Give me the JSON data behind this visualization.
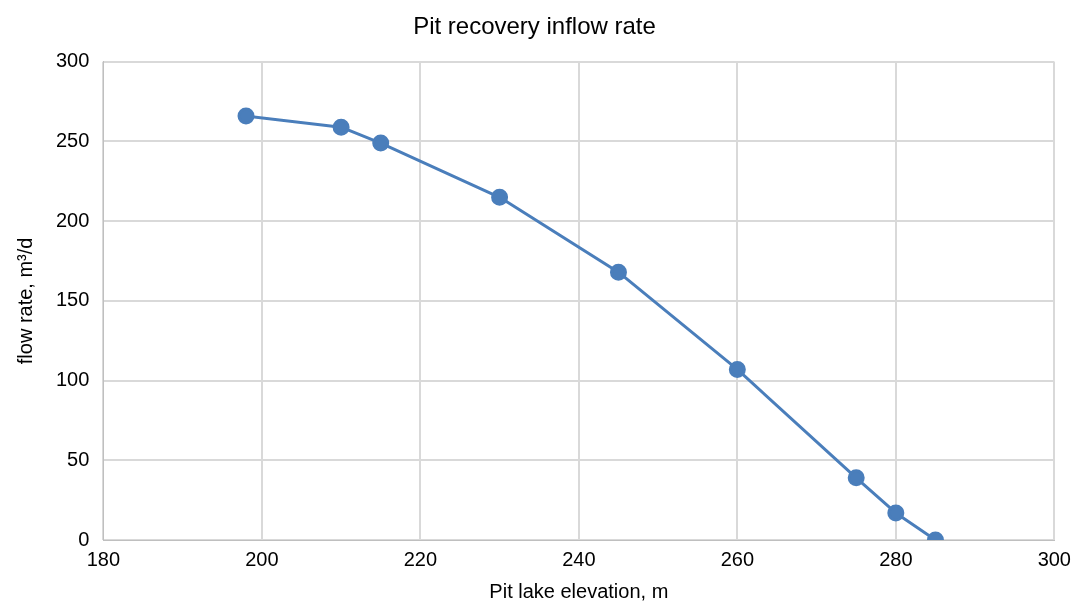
{
  "chart_data": {
    "type": "line",
    "title": "Pit recovery inflow rate",
    "xlabel": "Pit lake elevation, m",
    "ylabel": "flow rate, m³/d",
    "x": [
      198,
      210,
      215,
      230,
      245,
      260,
      275,
      280,
      285
    ],
    "series": [
      {
        "color": "#4a7ebb",
        "values": [
          266,
          259,
          249,
          215,
          168,
          107,
          39,
          17,
          0
        ]
      }
    ],
    "xlim": [
      180,
      300
    ],
    "xticks": [
      180,
      200,
      220,
      240,
      260,
      280,
      300
    ],
    "ylim": [
      0,
      300
    ],
    "yticks": [
      0,
      50,
      100,
      150,
      200,
      250,
      300
    ],
    "grid": true,
    "legend": false,
    "marker": "circle",
    "line_style": "solid"
  }
}
